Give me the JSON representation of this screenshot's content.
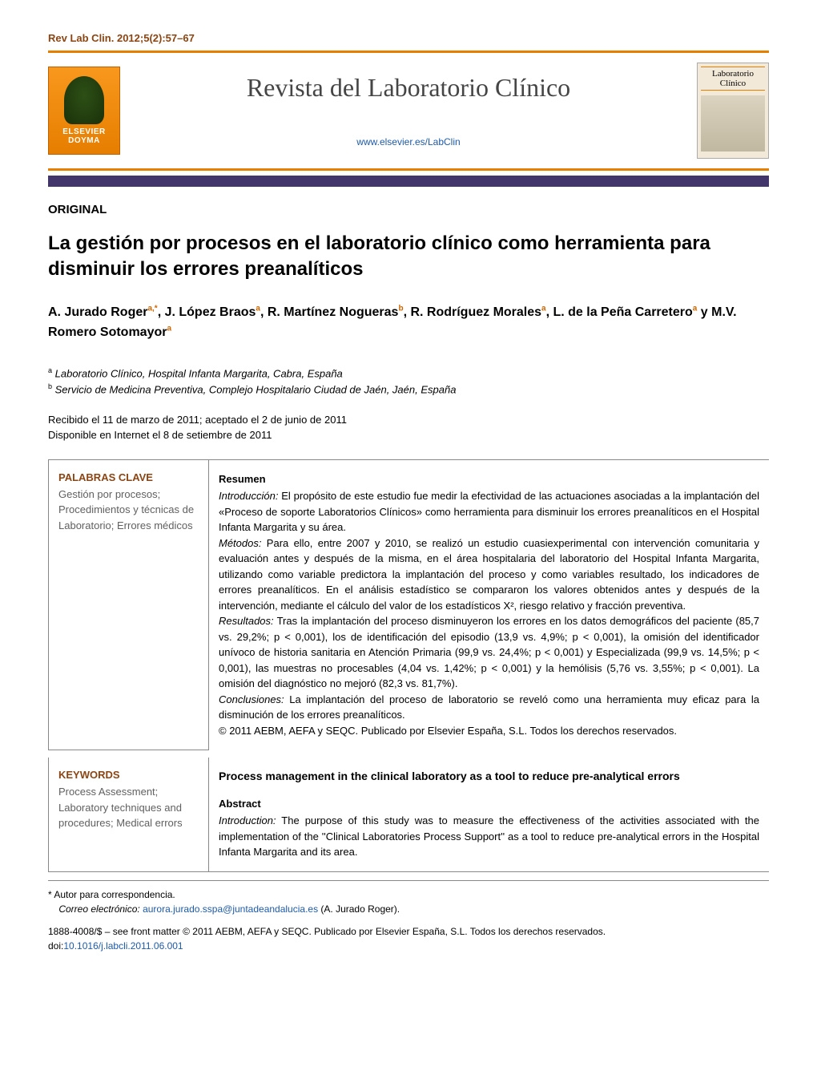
{
  "citation": "Rev Lab Clin. 2012;5(2):57–67",
  "publisher_logo": {
    "line1": "ELSEVIER",
    "line2": "DOYMA"
  },
  "journal_title": "Revista del Laboratorio Clínico",
  "journal_url": "www.elsevier.es/LabClin",
  "cover_thumb_title": "Laboratorio Clínico",
  "article_type": "ORIGINAL",
  "article_title": "La gestión por procesos en el laboratorio clínico como herramienta para disminuir los errores preanalíticos",
  "authors_html": "A. Jurado Roger<sup>a,*</sup>, J. López Braos<sup>a</sup>, R. Martínez Nogueras<sup>b</sup>, R. Rodríguez Morales<sup>a</sup>, L. de la Peña Carretero<sup>a</sup> y M.V. Romero Sotomayor<sup>a</sup>",
  "affiliations": {
    "a": "Laboratorio Clínico, Hospital Infanta Margarita, Cabra, España",
    "b": "Servicio de Medicina Preventiva, Complejo Hospitalario Ciudad de Jaén, Jaén, España"
  },
  "dates_line1": "Recibido el 11 de marzo de 2011; aceptado el 2 de junio de 2011",
  "dates_line2": "Disponible en Internet el 8 de setiembre de 2011",
  "palabras_clave": {
    "head": "PALABRAS CLAVE",
    "items": "Gestión por procesos; Procedimientos y técnicas de Laboratorio; Errores médicos"
  },
  "resumen": {
    "head": "Resumen",
    "introduccion_label": "Introducción:",
    "introduccion": " El propósito de este estudio fue medir la efectividad de las actuaciones asociadas a la implantación del «Proceso de soporte Laboratorios Clínicos» como herramienta para disminuir los errores preanalíticos en el Hospital Infanta Margarita y su área.",
    "metodos_label": "Métodos:",
    "metodos": " Para ello, entre 2007 y 2010, se realizó un estudio cuasiexperimental con intervención comunitaria y evaluación antes y después de la misma, en el área hospitalaria del laboratorio del Hospital Infanta Margarita, utilizando como variable predictora la implantación del proceso y como variables resultado, los indicadores de errores preanalíticos. En el análisis estadístico se compararon los valores obtenidos antes y después de la intervención, mediante el cálculo del valor de los estadísticos X², riesgo relativo y fracción preventiva.",
    "resultados_label": "Resultados:",
    "resultados": " Tras la implantación del proceso disminuyeron los errores en los datos demográficos del paciente (85,7 vs. 29,2%; p < 0,001), los de identificación del episodio (13,9 vs. 4,9%; p < 0,001), la omisión del identificador unívoco de historia sanitaria en Atención Primaria (99,9 vs. 24,4%; p < 0,001) y Especializada (99,9 vs. 14,5%; p < 0,001), las muestras no procesables (4,04 vs. 1,42%; p < 0,001) y la hemólisis (5,76 vs. 3,55%; p < 0,001). La omisión del diagnóstico no mejoró (82,3 vs. 81,7%).",
    "conclusiones_label": "Conclusiones:",
    "conclusiones": " La implantación del proceso de laboratorio se reveló como una herramienta muy eficaz para la disminución de los errores preanalíticos.",
    "copyright": "© 2011 AEBM, AEFA y SEQC. Publicado por Elsevier España, S.L. Todos los derechos reservados."
  },
  "keywords": {
    "head": "KEYWORDS",
    "items": "Process Assessment; Laboratory techniques and procedures; Medical errors"
  },
  "english_title": "Process management in the clinical laboratory as a tool to reduce pre-analytical errors",
  "abstract_en": {
    "head": "Abstract",
    "introduction_label": "Introduction:",
    "introduction": " The purpose of this study was to measure the effectiveness of the activities associated with the implementation of the ''Clinical Laboratories Process Support'' as a tool to reduce pre-analytical errors in the Hospital Infanta Margarita and its area."
  },
  "footer": {
    "corresp_label": "* Autor para correspondencia.",
    "email_label": "Correo electrónico:",
    "email": "aurora.jurado.sspa@juntadeandalucia.es",
    "email_author": " (A. Jurado Roger).",
    "issn_line": "1888-4008/$ – see front matter © 2011 AEBM, AEFA y SEQC. Publicado por Elsevier España, S.L. Todos los derechos reservados.",
    "doi_label": "doi:",
    "doi": "10.1016/j.labcli.2011.06.001"
  },
  "colors": {
    "orange": "#e67e00",
    "brown": "#8b4513",
    "purple_bar": "#42356b",
    "link_blue": "#1e5aa8",
    "kw_text": "#606060"
  }
}
